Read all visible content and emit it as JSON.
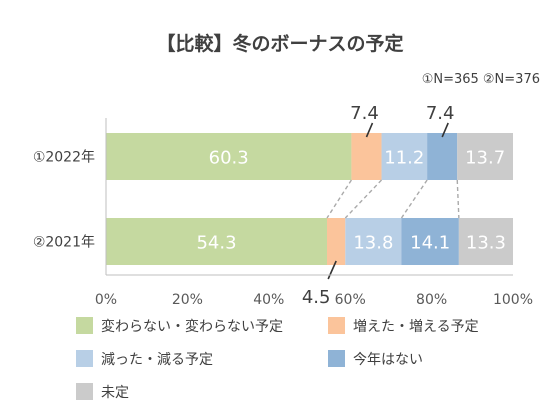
{
  "chart_data": {
    "type": "bar",
    "orientation": "horizontal",
    "stacked": "percent",
    "title": "【比較】冬のボーナスの予定",
    "note": "①N=365 ②N=376",
    "categories": [
      "①2022年",
      "②2021年"
    ],
    "series": [
      {
        "name": "変わらない・変わらない予定",
        "color": "#c5d9a0",
        "values": [
          60.3,
          54.3
        ]
      },
      {
        "name": "増えた・増える予定",
        "color": "#fbc49b",
        "values": [
          7.4,
          4.5
        ]
      },
      {
        "name": "減った・減る予定",
        "color": "#b8cfe6",
        "values": [
          11.2,
          13.8
        ]
      },
      {
        "name": "今年はない",
        "color": "#8fb3d6",
        "values": [
          7.4,
          14.1
        ]
      },
      {
        "name": "未定",
        "color": "#cbcbcb",
        "values": [
          13.7,
          13.3
        ]
      }
    ],
    "x_ticks": [
      "0%",
      "20%",
      "40%",
      "60%",
      "80%",
      "100%"
    ],
    "xlim": [
      0,
      100
    ],
    "grid": false,
    "legend_position": "bottom"
  }
}
